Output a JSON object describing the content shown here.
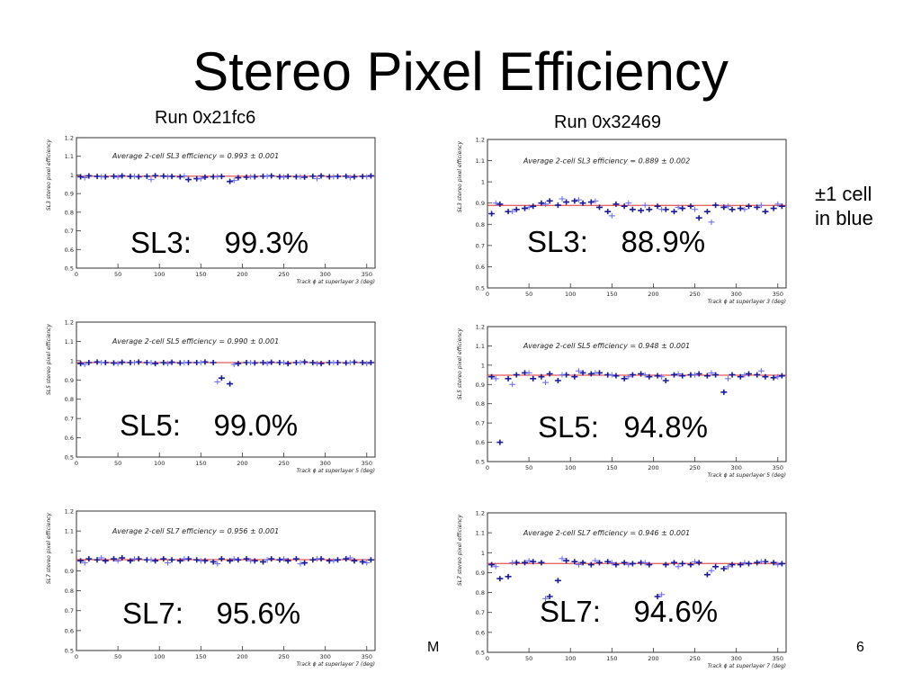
{
  "slide": {
    "title": "Stereo Pixel Efficiency",
    "run_left": "Run 0x21fc6",
    "run_right": "Run 0x32469",
    "note_line1": "±1 cell",
    "note_line2": "in blue",
    "footer_left": "M",
    "page_number": "6"
  },
  "big_labels": [
    "SL3:    99.3%",
    "SL3:    88.9%",
    "SL5:    99.0%",
    "SL5:   94.8%",
    "SL7:    95.6%",
    "SL7:    94.6%"
  ],
  "colors": {
    "points": "#1a1a99",
    "blue_points": "#6666ee",
    "average_line": "#e03030",
    "axes": "#333333"
  },
  "chart_data": [
    {
      "type": "scatter",
      "title": "Average 2-cell SL3 efficiency = 0.993 ± 0.001",
      "xlabel": "Track ϕ at superlayer 3   (deg)",
      "ylabel": "SL3 stereo pixel efficiency",
      "xlim": [
        0,
        360
      ],
      "ylim": [
        0.5,
        1.2
      ],
      "x_ticks": [
        "0",
        "50",
        "100",
        "150",
        "200",
        "250",
        "300",
        "350"
      ],
      "y_ticks": [
        "0.5",
        "0.6",
        "0.7",
        "0.8",
        "0.9",
        "1",
        "1.1",
        "1.2"
      ],
      "average": 0.993,
      "series": [
        {
          "x": [
            5,
            15,
            25,
            35,
            45,
            55,
            65,
            75,
            85,
            95,
            105,
            115,
            125,
            135,
            145,
            155,
            165,
            175,
            185,
            195,
            205,
            215,
            225,
            235,
            245,
            255,
            265,
            275,
            285,
            295,
            305,
            315,
            325,
            335,
            345,
            355
          ],
          "values": [
            0.99,
            0.995,
            0.992,
            0.99,
            0.993,
            0.995,
            0.992,
            0.99,
            0.993,
            0.996,
            0.994,
            0.992,
            0.99,
            0.975,
            0.98,
            0.988,
            0.99,
            0.992,
            0.965,
            0.985,
            0.988,
            0.99,
            0.993,
            0.995,
            0.99,
            0.992,
            0.99,
            0.988,
            0.993,
            0.995,
            0.99,
            0.992,
            0.993,
            0.99,
            0.992,
            0.995
          ]
        },
        {
          "x": [
            10,
            30,
            50,
            70,
            90,
            110,
            130,
            150,
            170,
            190,
            210,
            230,
            250,
            270,
            290,
            310,
            330,
            350
          ],
          "values": [
            0.985,
            0.99,
            0.988,
            0.993,
            0.975,
            0.99,
            0.995,
            0.98,
            0.99,
            0.97,
            0.99,
            0.993,
            0.988,
            0.99,
            0.98,
            0.99,
            0.985,
            0.99
          ]
        }
      ]
    },
    {
      "type": "scatter",
      "title": "Average 2-cell SL3 efficiency = 0.889 ± 0.002",
      "xlabel": "Track ϕ at superlayer 3   (deg)",
      "ylabel": "SL3 stereo pixel efficiency",
      "xlim": [
        0,
        360
      ],
      "ylim": [
        0.5,
        1.2
      ],
      "x_ticks": [
        "0",
        "50",
        "100",
        "150",
        "200",
        "250",
        "300",
        "350"
      ],
      "y_ticks": [
        "0.5",
        "0.6",
        "0.7",
        "0.8",
        "0.9",
        "1",
        "1.1",
        "1.2"
      ],
      "average": 0.889,
      "series": [
        {
          "x": [
            5,
            15,
            25,
            35,
            45,
            55,
            65,
            75,
            85,
            95,
            105,
            115,
            125,
            135,
            145,
            155,
            165,
            175,
            185,
            195,
            205,
            215,
            225,
            235,
            245,
            255,
            265,
            275,
            285,
            295,
            305,
            315,
            325,
            335,
            345,
            355
          ],
          "values": [
            0.85,
            0.895,
            0.86,
            0.87,
            0.875,
            0.885,
            0.9,
            0.91,
            0.89,
            0.905,
            0.91,
            0.9,
            0.905,
            0.88,
            0.86,
            0.895,
            0.885,
            0.87,
            0.865,
            0.87,
            0.885,
            0.87,
            0.86,
            0.875,
            0.885,
            0.83,
            0.86,
            0.89,
            0.88,
            0.87,
            0.875,
            0.885,
            0.88,
            0.86,
            0.875,
            0.885
          ]
        },
        {
          "x": [
            10,
            30,
            50,
            70,
            90,
            110,
            130,
            150,
            170,
            190,
            210,
            230,
            250,
            270,
            290,
            310,
            330,
            350
          ],
          "values": [
            0.9,
            0.86,
            0.88,
            0.895,
            0.92,
            0.915,
            0.91,
            0.84,
            0.9,
            0.89,
            0.87,
            0.88,
            0.87,
            0.81,
            0.885,
            0.87,
            0.89,
            0.895
          ]
        }
      ]
    },
    {
      "type": "scatter",
      "title": "Average 2-cell SL5 efficiency = 0.990 ± 0.001",
      "xlabel": "Track ϕ at superlayer 5   (deg)",
      "ylabel": "SL5 stereo pixel efficiency",
      "xlim": [
        0,
        360
      ],
      "ylim": [
        0.5,
        1.2
      ],
      "x_ticks": [
        "0",
        "50",
        "100",
        "150",
        "200",
        "250",
        "300",
        "350"
      ],
      "y_ticks": [
        "0.5",
        "0.6",
        "0.7",
        "0.8",
        "0.9",
        "1",
        "1.1",
        "1.2"
      ],
      "average": 0.99,
      "series": [
        {
          "x": [
            5,
            15,
            25,
            35,
            45,
            55,
            65,
            75,
            85,
            95,
            105,
            115,
            125,
            135,
            145,
            155,
            165,
            175,
            185,
            195,
            205,
            215,
            225,
            235,
            245,
            255,
            265,
            275,
            285,
            295,
            305,
            315,
            325,
            335,
            345,
            355
          ],
          "values": [
            0.985,
            0.99,
            0.993,
            0.99,
            0.988,
            0.992,
            0.99,
            0.993,
            0.99,
            0.985,
            0.99,
            0.992,
            0.988,
            0.99,
            0.99,
            0.993,
            0.99,
            0.91,
            0.88,
            0.985,
            0.99,
            0.988,
            0.99,
            0.992,
            0.99,
            0.985,
            0.99,
            0.993,
            0.99,
            0.985,
            0.99,
            0.99,
            0.988,
            0.992,
            0.99,
            0.99
          ]
        },
        {
          "x": [
            10,
            30,
            50,
            70,
            90,
            110,
            130,
            150,
            170,
            190,
            210,
            230,
            250,
            270,
            290,
            310,
            330,
            350
          ],
          "values": [
            0.98,
            0.99,
            0.985,
            0.99,
            0.99,
            0.985,
            0.99,
            0.99,
            0.89,
            0.98,
            0.99,
            0.985,
            0.99,
            0.99,
            0.985,
            0.99,
            0.99,
            0.985
          ]
        }
      ]
    },
    {
      "type": "scatter",
      "title": "Average 2-cell SL5 efficiency = 0.948 ± 0.001",
      "xlabel": "Track ϕ at superlayer 5   (deg)",
      "ylabel": "SL5 stereo pixel efficiency",
      "xlim": [
        0,
        360
      ],
      "ylim": [
        0.5,
        1.2
      ],
      "x_ticks": [
        "0",
        "50",
        "100",
        "150",
        "200",
        "250",
        "300",
        "350"
      ],
      "y_ticks": [
        "0.5",
        "0.6",
        "0.7",
        "0.8",
        "0.9",
        "1",
        "1.1",
        "1.2"
      ],
      "average": 0.948,
      "series": [
        {
          "x": [
            5,
            15,
            25,
            35,
            45,
            55,
            65,
            75,
            85,
            95,
            105,
            115,
            125,
            135,
            145,
            155,
            165,
            175,
            185,
            195,
            205,
            215,
            225,
            235,
            245,
            255,
            265,
            275,
            285,
            295,
            305,
            315,
            325,
            335,
            345,
            355
          ],
          "values": [
            0.94,
            0.6,
            0.93,
            0.95,
            0.96,
            0.93,
            0.94,
            0.955,
            0.92,
            0.95,
            0.94,
            0.96,
            0.955,
            0.96,
            0.95,
            0.945,
            0.93,
            0.95,
            0.955,
            0.94,
            0.945,
            0.92,
            0.95,
            0.945,
            0.95,
            0.955,
            0.945,
            0.95,
            0.86,
            0.95,
            0.94,
            0.955,
            0.95,
            0.94,
            0.935,
            0.945
          ]
        },
        {
          "x": [
            10,
            30,
            50,
            70,
            90,
            110,
            130,
            150,
            170,
            190,
            210,
            230,
            250,
            270,
            290,
            310,
            330,
            350
          ],
          "values": [
            0.93,
            0.9,
            0.96,
            0.91,
            0.95,
            0.97,
            0.96,
            0.95,
            0.94,
            0.95,
            0.94,
            0.955,
            0.95,
            0.96,
            0.93,
            0.95,
            0.97,
            0.94
          ]
        }
      ]
    },
    {
      "type": "scatter",
      "title": "Average 2-cell SL7 efficiency = 0.956 ± 0.001",
      "xlabel": "Track ϕ at superlayer 7   (deg)",
      "ylabel": "SL7 stereo pixel efficiency",
      "xlim": [
        0,
        360
      ],
      "ylim": [
        0.5,
        1.2
      ],
      "x_ticks": [
        "0",
        "50",
        "100",
        "150",
        "200",
        "250",
        "300",
        "350"
      ],
      "y_ticks": [
        "0.5",
        "0.6",
        "0.7",
        "0.8",
        "0.9",
        "1",
        "1.1",
        "1.2"
      ],
      "average": 0.956,
      "series": [
        {
          "x": [
            5,
            15,
            25,
            35,
            45,
            55,
            65,
            75,
            85,
            95,
            105,
            115,
            125,
            135,
            145,
            155,
            165,
            175,
            185,
            195,
            205,
            215,
            225,
            235,
            245,
            255,
            265,
            275,
            285,
            295,
            305,
            315,
            325,
            335,
            345,
            355
          ],
          "values": [
            0.95,
            0.96,
            0.955,
            0.95,
            0.96,
            0.965,
            0.95,
            0.96,
            0.955,
            0.95,
            0.96,
            0.955,
            0.95,
            0.96,
            0.955,
            0.95,
            0.945,
            0.96,
            0.95,
            0.955,
            0.96,
            0.95,
            0.945,
            0.96,
            0.955,
            0.95,
            0.96,
            0.94,
            0.955,
            0.96,
            0.95,
            0.955,
            0.96,
            0.95,
            0.945,
            0.955
          ]
        },
        {
          "x": [
            10,
            30,
            50,
            70,
            90,
            110,
            130,
            150,
            170,
            190,
            210,
            230,
            250,
            270,
            290,
            310,
            330,
            350
          ],
          "values": [
            0.94,
            0.965,
            0.95,
            0.96,
            0.955,
            0.94,
            0.96,
            0.95,
            0.935,
            0.96,
            0.95,
            0.955,
            0.96,
            0.935,
            0.96,
            0.95,
            0.965,
            0.94
          ]
        }
      ]
    },
    {
      "type": "scatter",
      "title": "Average 2-cell SL7 efficiency = 0.946 ± 0.001",
      "xlabel": "Track ϕ at superlayer 7   (deg)",
      "ylabel": "SL7 stereo pixel efficiency",
      "xlim": [
        0,
        360
      ],
      "ylim": [
        0.5,
        1.2
      ],
      "x_ticks": [
        "0",
        "50",
        "100",
        "150",
        "200",
        "250",
        "300",
        "350"
      ],
      "y_ticks": [
        "0.5",
        "0.6",
        "0.7",
        "0.8",
        "0.9",
        "1",
        "1.1",
        "1.2"
      ],
      "average": 0.946,
      "series": [
        {
          "x": [
            5,
            15,
            25,
            35,
            45,
            55,
            65,
            75,
            85,
            95,
            105,
            115,
            125,
            135,
            145,
            155,
            165,
            175,
            185,
            195,
            205,
            215,
            225,
            235,
            245,
            255,
            265,
            275,
            285,
            295,
            305,
            315,
            325,
            335,
            345,
            355
          ],
          "values": [
            0.94,
            0.87,
            0.88,
            0.95,
            0.95,
            0.955,
            0.95,
            0.78,
            0.86,
            0.96,
            0.955,
            0.95,
            0.94,
            0.95,
            0.955,
            0.94,
            0.95,
            0.945,
            0.95,
            0.94,
            0.78,
            0.94,
            0.95,
            0.945,
            0.94,
            0.95,
            0.89,
            0.93,
            0.92,
            0.94,
            0.94,
            0.945,
            0.95,
            0.955,
            0.95,
            0.945
          ]
        },
        {
          "x": [
            10,
            30,
            50,
            70,
            90,
            110,
            130,
            150,
            170,
            190,
            210,
            230,
            250,
            270,
            290,
            310,
            330,
            350
          ],
          "values": [
            0.93,
            0.95,
            0.96,
            0.77,
            0.97,
            0.94,
            0.96,
            0.95,
            0.94,
            0.95,
            0.79,
            0.93,
            0.955,
            0.91,
            0.93,
            0.95,
            0.955,
            0.94
          ]
        }
      ]
    }
  ]
}
